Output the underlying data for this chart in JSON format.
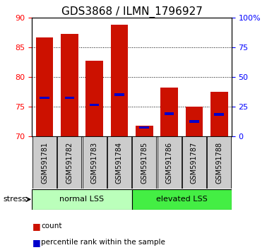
{
  "title": "GDS3868 / ILMN_1796927",
  "categories": [
    "GSM591781",
    "GSM591782",
    "GSM591783",
    "GSM591784",
    "GSM591785",
    "GSM591786",
    "GSM591787",
    "GSM591788"
  ],
  "red_values": [
    86.7,
    87.2,
    82.7,
    88.8,
    71.8,
    78.2,
    75.0,
    77.5
  ],
  "blue_values": [
    76.5,
    76.5,
    75.3,
    77.0,
    71.5,
    73.8,
    72.5,
    73.7
  ],
  "blue_heights": [
    0.4,
    0.4,
    0.4,
    0.4,
    0.3,
    0.4,
    0.5,
    0.4
  ],
  "ymin": 70,
  "ymax": 90,
  "yticks": [
    70,
    75,
    80,
    85,
    90
  ],
  "right_yticks": [
    0,
    25,
    50,
    75,
    100
  ],
  "group1_label": "normal LSS",
  "group2_label": "elevated LSS",
  "group1_indices": [
    0,
    1,
    2,
    3
  ],
  "group2_indices": [
    4,
    5,
    6,
    7
  ],
  "stress_label": "stress",
  "legend_count": "count",
  "legend_percentile": "percentile rank within the sample",
  "bar_color": "#cc1100",
  "blue_color": "#0000cc",
  "group1_color": "#bbffbb",
  "group2_color": "#44ee44",
  "tick_bg_color": "#cccccc",
  "title_fontsize": 11,
  "tick_fontsize": 8,
  "label_fontsize": 7
}
